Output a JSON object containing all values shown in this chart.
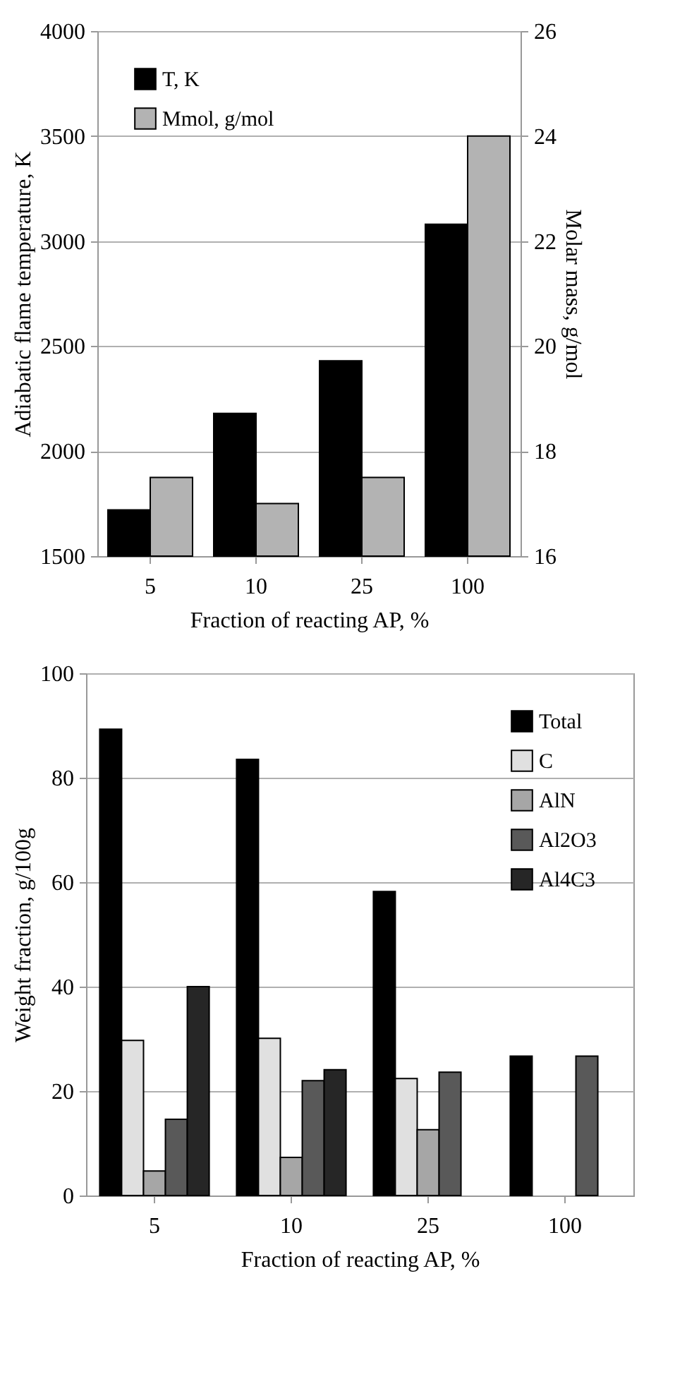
{
  "chart_data": [
    {
      "type": "bar",
      "categories": [
        "5",
        "10",
        "25",
        "100"
      ],
      "xlabel": "Fraction of reacting AP, %",
      "ylabel": "Adiabatic flame temperature, K",
      "y2label": "Molar mass, g/mol",
      "ylim": [
        1500,
        4000
      ],
      "yticks": [
        1500,
        2000,
        2500,
        3000,
        3500,
        4000
      ],
      "y2lim": [
        16,
        26
      ],
      "y2ticks": [
        16,
        18,
        20,
        22,
        24,
        26
      ],
      "grid": "y",
      "legend": "top left",
      "series": [
        {
          "name": "T, K",
          "color": "#000000",
          "values": [
            1720,
            2180,
            2430,
            3080
          ]
        },
        {
          "name": "Mmol, g/mol",
          "color": "#b3b3b3",
          "axis": "y2",
          "values": [
            17.5,
            17.0,
            17.5,
            24.0
          ]
        }
      ]
    },
    {
      "type": "bar",
      "categories": [
        "5",
        "10",
        "25",
        "100"
      ],
      "xlabel": "Fraction of reacting AP, %",
      "ylabel": "Weight fraction, g/100g",
      "ylim": [
        0,
        100
      ],
      "yticks": [
        0,
        20,
        40,
        60,
        80,
        100
      ],
      "grid": "y",
      "legend": "top right",
      "series": [
        {
          "name": "Total",
          "color": "#000000",
          "values": [
            89.3,
            83.5,
            58.2,
            26.7
          ]
        },
        {
          "name": "C",
          "color": "#e0e0e0",
          "values": [
            29.7,
            30.1,
            22.4,
            null
          ]
        },
        {
          "name": "AlN",
          "color": "#a6a6a6",
          "values": [
            4.7,
            7.3,
            12.6,
            null
          ]
        },
        {
          "name": "Al2O3",
          "color": "#595959",
          "values": [
            14.6,
            22.0,
            23.6,
            26.7
          ]
        },
        {
          "name": "Al4C3",
          "color": "#262626",
          "values": [
            40.0,
            24.1,
            null,
            null
          ]
        }
      ]
    }
  ]
}
